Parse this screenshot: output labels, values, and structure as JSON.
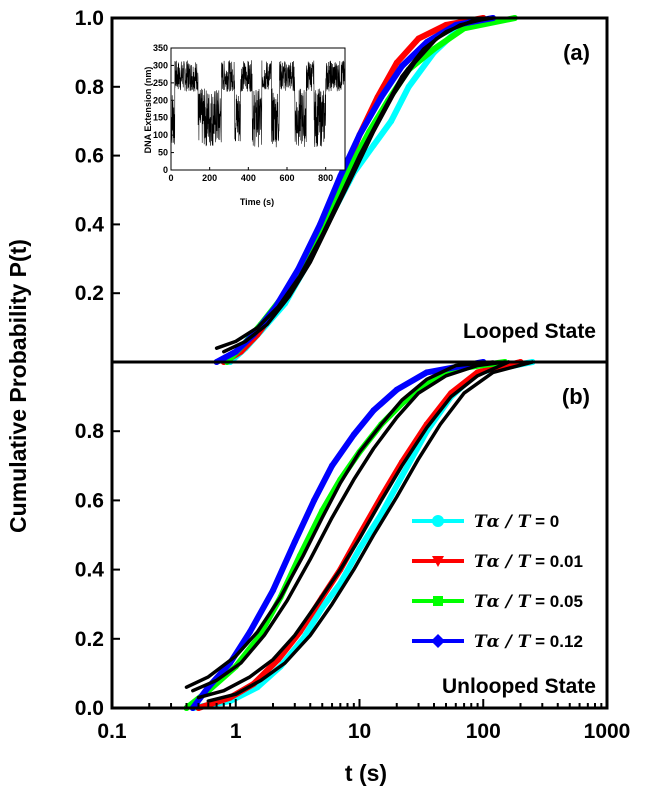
{
  "chart_data": {
    "type": "line",
    "x_scale": "log",
    "xlim": [
      0.1,
      1000
    ],
    "xlabel": "t (s)",
    "ylabel": "Cumulative Probability P(t)",
    "x_ticks": [
      "0.1",
      "1",
      "10",
      "100",
      "1000"
    ],
    "panels": [
      {
        "id": "a",
        "label": "(a)",
        "state_label": "Looped State",
        "ylim": [
          0,
          1.0
        ],
        "y_ticks": [
          "0.2",
          "0.4",
          "0.6",
          "0.8",
          "1.0"
        ],
        "series": [
          {
            "color": "#00ffff",
            "points": [
              [
                0.9,
                0.0
              ],
              [
                1.2,
                0.04
              ],
              [
                1.6,
                0.09
              ],
              [
                2.5,
                0.17
              ],
              [
                4,
                0.3
              ],
              [
                6,
                0.43
              ],
              [
                9,
                0.55
              ],
              [
                13,
                0.63
              ],
              [
                18,
                0.7
              ],
              [
                25,
                0.8
              ],
              [
                40,
                0.9
              ],
              [
                60,
                0.96
              ],
              [
                100,
                1.0
              ]
            ]
          },
          {
            "color": "#ff0000",
            "points": [
              [
                0.8,
                0.0
              ],
              [
                1.1,
                0.03
              ],
              [
                1.5,
                0.08
              ],
              [
                2.3,
                0.17
              ],
              [
                3.5,
                0.28
              ],
              [
                5,
                0.38
              ],
              [
                7,
                0.52
              ],
              [
                10,
                0.66
              ],
              [
                14,
                0.77
              ],
              [
                20,
                0.87
              ],
              [
                30,
                0.94
              ],
              [
                50,
                0.98
              ],
              [
                100,
                1.0
              ]
            ]
          },
          {
            "color": "#00ff00",
            "points": [
              [
                0.85,
                0.0
              ],
              [
                1.15,
                0.05
              ],
              [
                1.6,
                0.11
              ],
              [
                2.4,
                0.19
              ],
              [
                3.8,
                0.31
              ],
              [
                5.5,
                0.42
              ],
              [
                8,
                0.55
              ],
              [
                12,
                0.67
              ],
              [
                17,
                0.76
              ],
              [
                25,
                0.85
              ],
              [
                40,
                0.91
              ],
              [
                70,
                0.97
              ],
              [
                180,
                1.0
              ]
            ]
          },
          {
            "color": "#0000ff",
            "points": [
              [
                0.7,
                0.0
              ],
              [
                1.0,
                0.03
              ],
              [
                1.4,
                0.08
              ],
              [
                2.1,
                0.16
              ],
              [
                3.2,
                0.27
              ],
              [
                4.8,
                0.4
              ],
              [
                7,
                0.54
              ],
              [
                10,
                0.66
              ],
              [
                15,
                0.77
              ],
              [
                22,
                0.86
              ],
              [
                35,
                0.93
              ],
              [
                60,
                0.98
              ],
              [
                120,
                1.0
              ]
            ]
          }
        ],
        "fits": [
          {
            "points": [
              [
                0.7,
                0.04
              ],
              [
                1.0,
                0.06
              ],
              [
                1.5,
                0.1
              ],
              [
                2.2,
                0.16
              ],
              [
                3.3,
                0.25
              ],
              [
                5,
                0.37
              ],
              [
                7,
                0.48
              ],
              [
                10,
                0.6
              ],
              [
                15,
                0.72
              ],
              [
                22,
                0.83
              ],
              [
                33,
                0.91
              ],
              [
                50,
                0.96
              ],
              [
                80,
                0.99
              ],
              [
                120,
                1.0
              ]
            ]
          },
          {
            "points": [
              [
                0.8,
                0.03
              ],
              [
                1.2,
                0.06
              ],
              [
                1.8,
                0.11
              ],
              [
                2.7,
                0.19
              ],
              [
                4,
                0.29
              ],
              [
                6,
                0.42
              ],
              [
                9,
                0.55
              ],
              [
                13,
                0.67
              ],
              [
                19,
                0.78
              ],
              [
                28,
                0.87
              ],
              [
                42,
                0.94
              ],
              [
                65,
                0.98
              ],
              [
                110,
                1.0
              ]
            ]
          }
        ],
        "inset": {
          "xlabel": "Time (s)",
          "ylabel": "DNA Extension (nm)",
          "xlim": [
            0,
            900
          ],
          "ylim": [
            0,
            350
          ],
          "x_ticks": [
            "0",
            "200",
            "400",
            "600",
            "800"
          ],
          "y_ticks": [
            "0",
            "50",
            "100",
            "150",
            "200",
            "250",
            "300",
            "350"
          ],
          "levels": {
            "looped": 150,
            "unlooped": 270
          },
          "segments": [
            [
              0,
              20,
              "l"
            ],
            [
              20,
              140,
              "u"
            ],
            [
              140,
              260,
              "l"
            ],
            [
              260,
              330,
              "u"
            ],
            [
              330,
              360,
              "l"
            ],
            [
              360,
              420,
              "u"
            ],
            [
              420,
              470,
              "l"
            ],
            [
              470,
              520,
              "u"
            ],
            [
              520,
              560,
              "l"
            ],
            [
              560,
              640,
              "u"
            ],
            [
              640,
              700,
              "l"
            ],
            [
              700,
              740,
              "u"
            ],
            [
              740,
              800,
              "l"
            ],
            [
              800,
              900,
              "u"
            ]
          ]
        }
      },
      {
        "id": "b",
        "label": "(b)",
        "state_label": "Unlooped State",
        "ylim": [
          0,
          1.0
        ],
        "y_ticks": [
          "0.0",
          "0.2",
          "0.4",
          "0.6",
          "0.8"
        ],
        "series": [
          {
            "name_sym": "Tα / T",
            "name_val": " = 0",
            "color": "#00ffff",
            "marker": "circle",
            "points": [
              [
                0.45,
                0.0
              ],
              [
                0.9,
                0.02
              ],
              [
                1.5,
                0.06
              ],
              [
                2.3,
                0.12
              ],
              [
                3.5,
                0.2
              ],
              [
                5,
                0.29
              ],
              [
                7,
                0.36
              ],
              [
                10,
                0.46
              ],
              [
                15,
                0.56
              ],
              [
                22,
                0.67
              ],
              [
                35,
                0.8
              ],
              [
                55,
                0.9
              ],
              [
                90,
                0.97
              ],
              [
                250,
                1.0
              ]
            ]
          },
          {
            "name_sym": "Tα / T",
            "name_val": " = 0.01",
            "color": "#ff0000",
            "marker": "triangle",
            "points": [
              [
                0.5,
                0.0
              ],
              [
                0.9,
                0.03
              ],
              [
                1.4,
                0.07
              ],
              [
                2.2,
                0.14
              ],
              [
                3.3,
                0.22
              ],
              [
                5,
                0.32
              ],
              [
                7,
                0.4
              ],
              [
                10,
                0.5
              ],
              [
                15,
                0.61
              ],
              [
                22,
                0.71
              ],
              [
                35,
                0.82
              ],
              [
                55,
                0.91
              ],
              [
                90,
                0.97
              ],
              [
                200,
                1.0
              ]
            ]
          },
          {
            "name_sym": "Tα / T",
            "name_val": " = 0.05",
            "color": "#00ff00",
            "marker": "square",
            "points": [
              [
                0.4,
                0.0
              ],
              [
                0.6,
                0.05
              ],
              [
                1.0,
                0.12
              ],
              [
                1.5,
                0.2
              ],
              [
                2.3,
                0.32
              ],
              [
                3.3,
                0.44
              ],
              [
                5,
                0.57
              ],
              [
                7,
                0.66
              ],
              [
                10,
                0.74
              ],
              [
                15,
                0.82
              ],
              [
                22,
                0.88
              ],
              [
                35,
                0.94
              ],
              [
                60,
                0.98
              ],
              [
                150,
                1.0
              ]
            ]
          },
          {
            "name_sym": "Tα / T",
            "name_val": " = 0.12",
            "color": "#0000ff",
            "marker": "diamond",
            "points": [
              [
                0.45,
                0.0
              ],
              [
                0.6,
                0.06
              ],
              [
                0.9,
                0.13
              ],
              [
                1.3,
                0.22
              ],
              [
                2.0,
                0.34
              ],
              [
                3.0,
                0.48
              ],
              [
                4.3,
                0.6
              ],
              [
                6,
                0.7
              ],
              [
                9,
                0.79
              ],
              [
                13,
                0.86
              ],
              [
                20,
                0.92
              ],
              [
                35,
                0.97
              ],
              [
                100,
                1.0
              ]
            ]
          }
        ],
        "fits": [
          {
            "points": [
              [
                0.4,
                0.06
              ],
              [
                0.6,
                0.09
              ],
              [
                1.0,
                0.15
              ],
              [
                1.5,
                0.22
              ],
              [
                2.3,
                0.32
              ],
              [
                3.5,
                0.44
              ],
              [
                5,
                0.55
              ],
              [
                7,
                0.65
              ],
              [
                10,
                0.74
              ],
              [
                15,
                0.82
              ],
              [
                22,
                0.89
              ],
              [
                35,
                0.95
              ],
              [
                60,
                0.99
              ],
              [
                120,
                1.0
              ]
            ]
          },
          {
            "points": [
              [
                0.45,
                0.05
              ],
              [
                0.7,
                0.08
              ],
              [
                1.1,
                0.13
              ],
              [
                1.7,
                0.21
              ],
              [
                2.6,
                0.31
              ],
              [
                4,
                0.43
              ],
              [
                6,
                0.55
              ],
              [
                9,
                0.66
              ],
              [
                13,
                0.75
              ],
              [
                20,
                0.84
              ],
              [
                30,
                0.91
              ],
              [
                50,
                0.96
              ],
              [
                90,
                0.99
              ],
              [
                150,
                1.0
              ]
            ]
          },
          {
            "points": [
              [
                0.5,
                0.03
              ],
              [
                0.8,
                0.05
              ],
              [
                1.3,
                0.09
              ],
              [
                2.0,
                0.14
              ],
              [
                3,
                0.21
              ],
              [
                4.5,
                0.3
              ],
              [
                7,
                0.4
              ],
              [
                10,
                0.49
              ],
              [
                15,
                0.6
              ],
              [
                22,
                0.7
              ],
              [
                35,
                0.81
              ],
              [
                55,
                0.9
              ],
              [
                90,
                0.96
              ],
              [
                160,
                1.0
              ]
            ]
          },
          {
            "points": [
              [
                0.6,
                0.02
              ],
              [
                1.0,
                0.04
              ],
              [
                1.6,
                0.08
              ],
              [
                2.5,
                0.13
              ],
              [
                4,
                0.21
              ],
              [
                6,
                0.3
              ],
              [
                9,
                0.4
              ],
              [
                13,
                0.5
              ],
              [
                20,
                0.61
              ],
              [
                30,
                0.72
              ],
              [
                45,
                0.82
              ],
              [
                70,
                0.91
              ],
              [
                120,
                0.97
              ],
              [
                250,
                1.0
              ]
            ]
          }
        ]
      }
    ]
  }
}
